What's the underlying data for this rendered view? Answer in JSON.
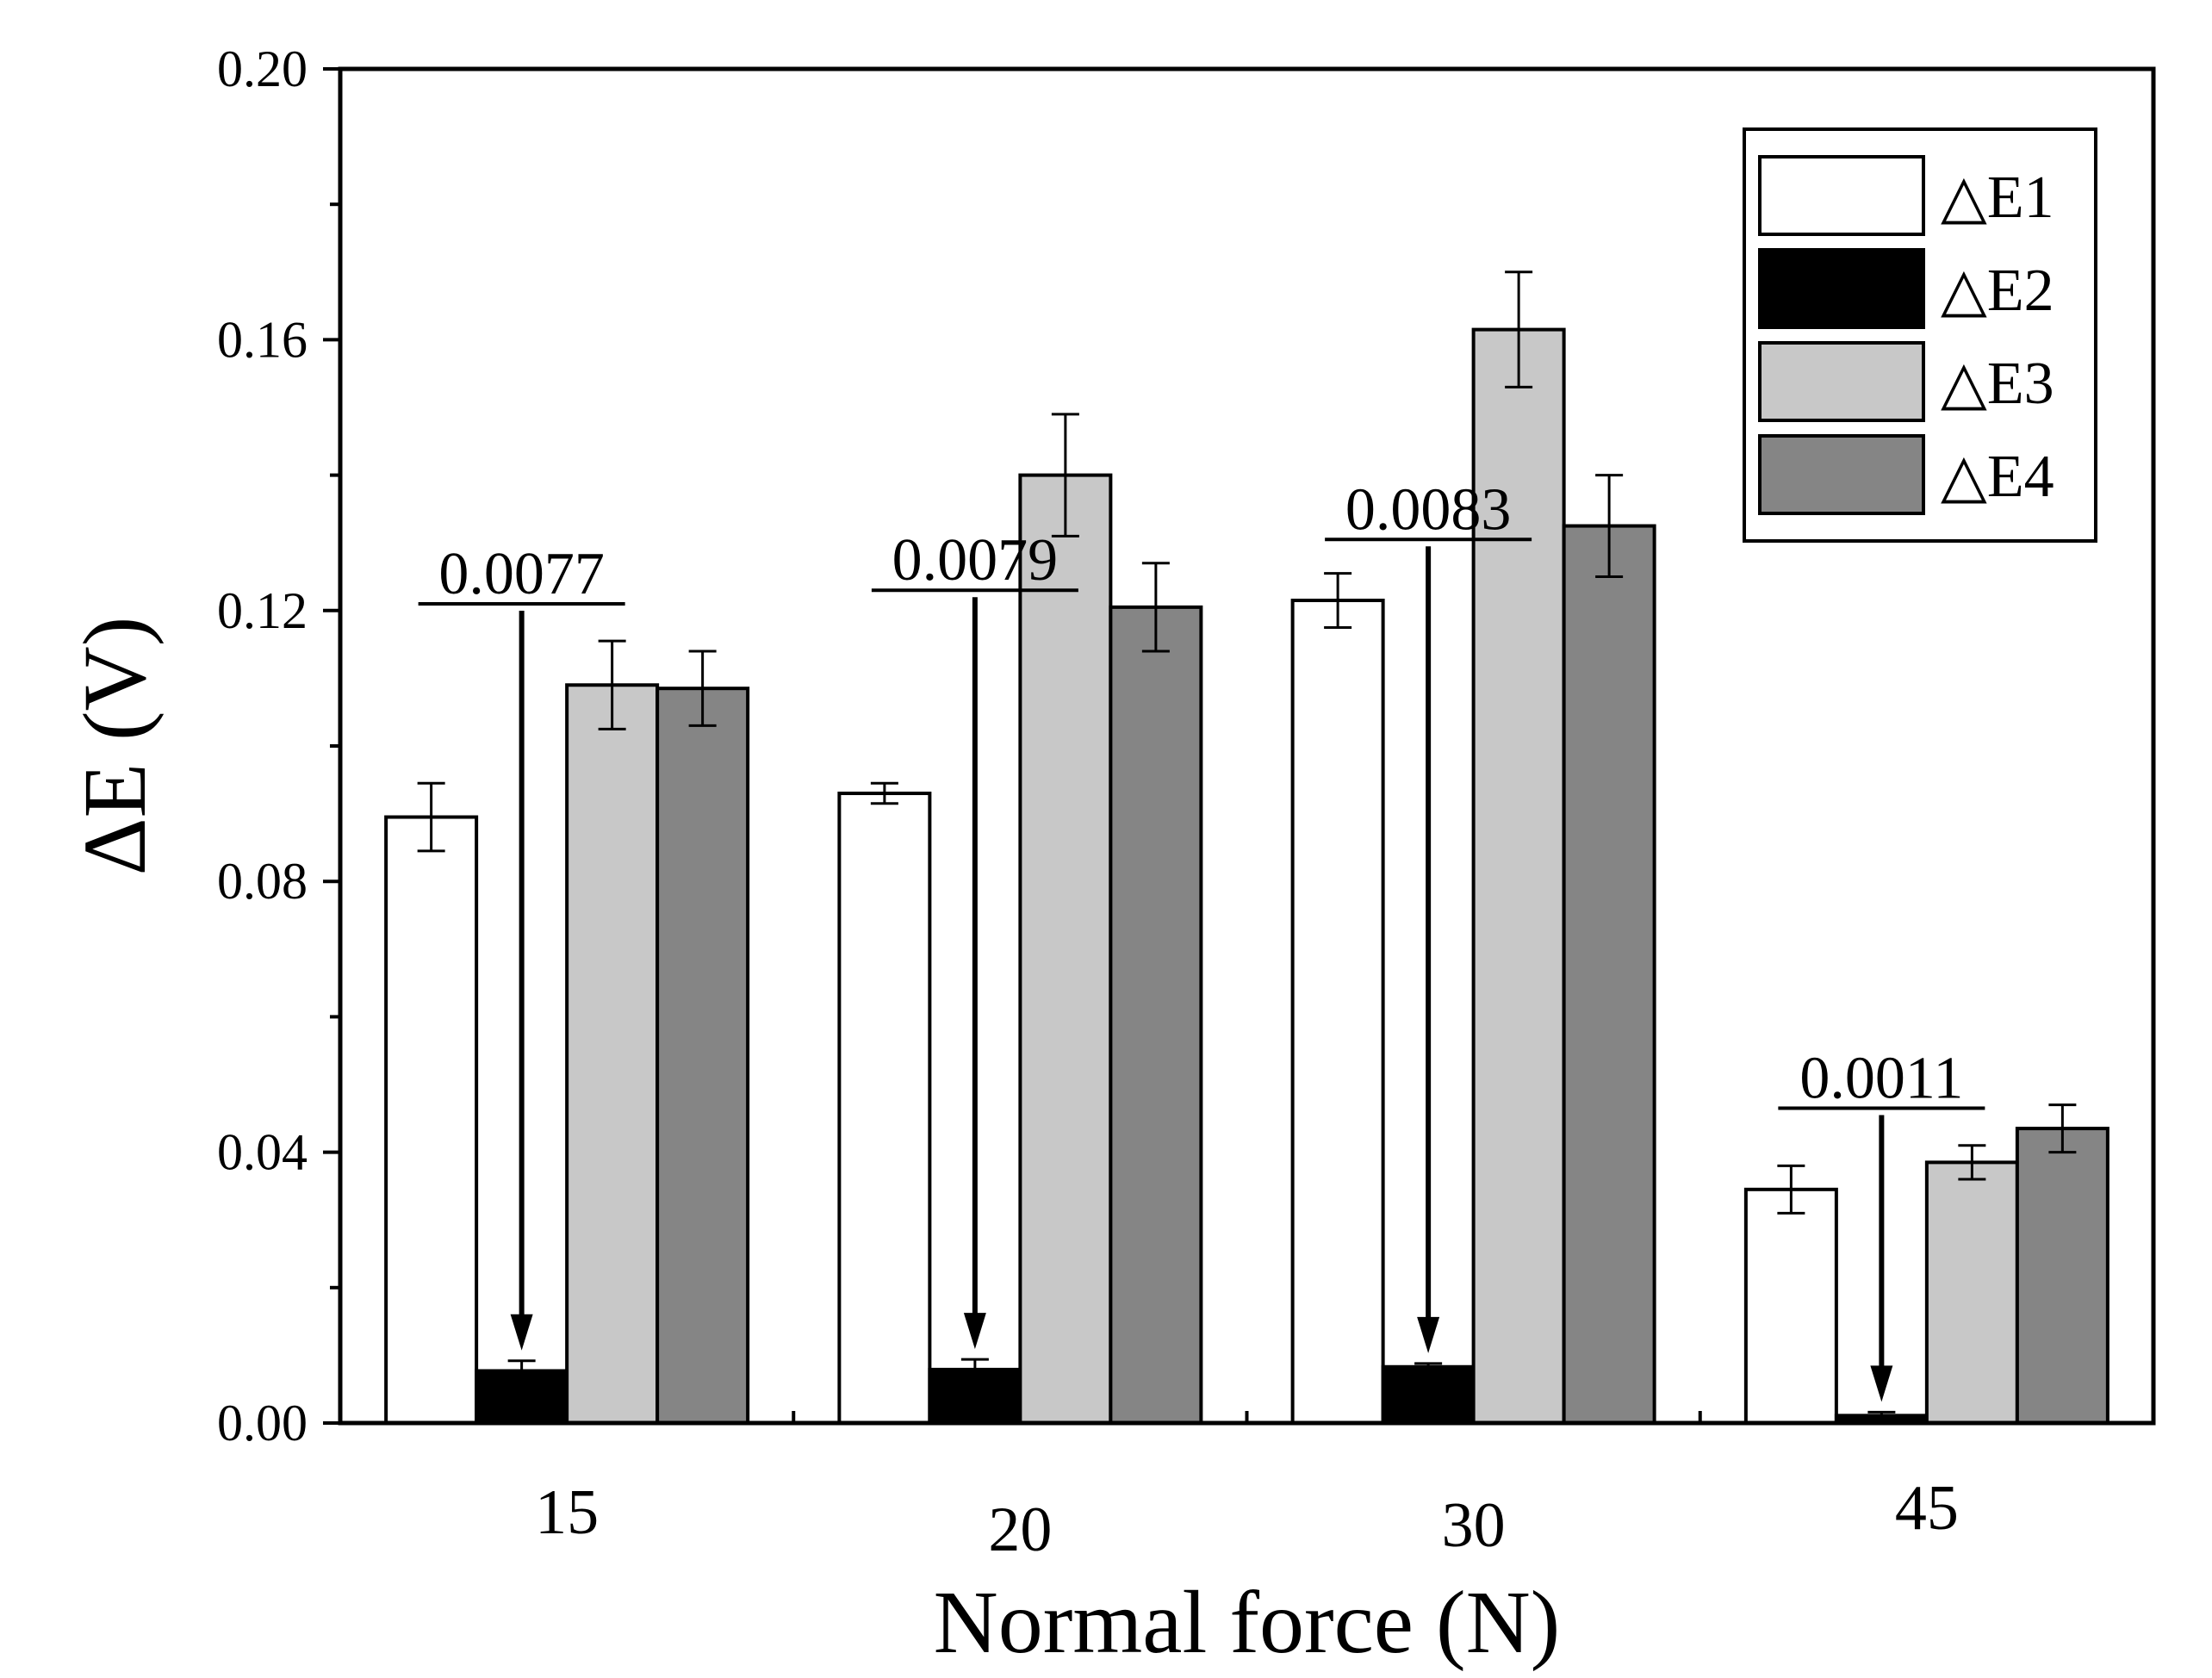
{
  "chart_data": {
    "type": "bar",
    "title": "",
    "xlabel": "Normal force (N)",
    "ylabel": "ΔE (V)",
    "ylim": [
      0,
      0.2
    ],
    "yticks": [
      "0.00",
      "0.04",
      "0.08",
      "0.12",
      "0.16",
      "0.20"
    ],
    "categories": [
      "15",
      "20",
      "30",
      "45"
    ],
    "series": [
      {
        "name": "△E1",
        "color": "#ffffff",
        "values": [
          0.0895,
          0.093,
          0.1215,
          0.0345
        ],
        "errors": [
          0.005,
          0.0015,
          0.004,
          0.0035
        ]
      },
      {
        "name": "△E2",
        "color": "#000000",
        "values": [
          0.0077,
          0.0079,
          0.0083,
          0.0011
        ],
        "errors": [
          0.0015,
          0.0015,
          0.0005,
          0.0005
        ]
      },
      {
        "name": "△E3",
        "color": "#c8c8c8",
        "values": [
          0.109,
          0.14,
          0.1615,
          0.0385
        ],
        "errors": [
          0.0065,
          0.009,
          0.0085,
          0.0025
        ]
      },
      {
        "name": "△E4",
        "color": "#858585",
        "values": [
          0.1085,
          0.1205,
          0.1325,
          0.0435
        ],
        "errors": [
          0.0055,
          0.0065,
          0.0075,
          0.0035
        ]
      }
    ],
    "annotations": [
      {
        "category": "15",
        "text": "0.0077"
      },
      {
        "category": "20",
        "text": "0.0079"
      },
      {
        "category": "30",
        "text": "0.0083"
      },
      {
        "category": "45",
        "text": "0.0011"
      }
    ],
    "legend_position": "top-right"
  }
}
